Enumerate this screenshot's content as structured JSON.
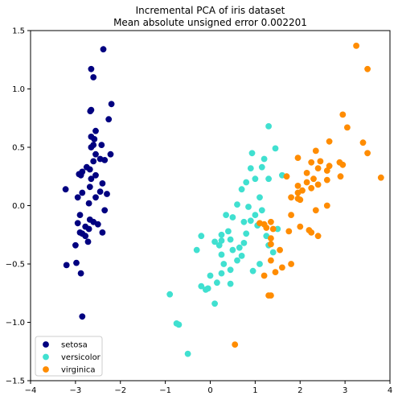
{
  "chart_data": {
    "type": "scatter",
    "title": "Incremental PCA of iris dataset",
    "subtitle": "Mean absolute unsigned error 0.002201",
    "xlim": [
      -4,
      4
    ],
    "ylim": [
      -1.5,
      1.5
    ],
    "xticks": [
      "−4",
      "−3",
      "−2",
      "−1",
      "0",
      "1",
      "2",
      "3",
      "4"
    ],
    "yticks": [
      "−1.5",
      "−1.0",
      "−0.5",
      "0.0",
      "0.5",
      "1.0",
      "1.5"
    ],
    "xtick_values": [
      -4,
      -3,
      -2,
      -1,
      0,
      1,
      2,
      3,
      4
    ],
    "ytick_values": [
      -1.5,
      -1.0,
      -0.5,
      0.0,
      0.5,
      1.0,
      1.5
    ],
    "grid": false,
    "legend_position": "lower-left",
    "series": [
      {
        "name": "setosa",
        "color": "#000080",
        "points": [
          [
            -2.38,
            1.34
          ],
          [
            -2.65,
            1.17
          ],
          [
            -2.6,
            1.1
          ],
          [
            -2.2,
            0.87
          ],
          [
            -2.65,
            0.82
          ],
          [
            -2.67,
            0.81
          ],
          [
            -2.26,
            0.74
          ],
          [
            -2.55,
            0.64
          ],
          [
            -2.65,
            0.59
          ],
          [
            -2.58,
            0.57
          ],
          [
            -2.42,
            0.52
          ],
          [
            -2.6,
            0.52
          ],
          [
            -2.65,
            0.5
          ],
          [
            -2.55,
            0.44
          ],
          [
            -2.22,
            0.44
          ],
          [
            -2.35,
            0.39
          ],
          [
            -2.45,
            0.4
          ],
          [
            -2.6,
            0.38
          ],
          [
            -2.75,
            0.33
          ],
          [
            -2.68,
            0.31
          ],
          [
            -2.85,
            0.29
          ],
          [
            -2.92,
            0.27
          ],
          [
            -2.88,
            0.26
          ],
          [
            -2.55,
            0.26
          ],
          [
            -2.65,
            0.23
          ],
          [
            -2.4,
            0.19
          ],
          [
            -2.68,
            0.16
          ],
          [
            -2.45,
            0.12
          ],
          [
            -3.22,
            0.14
          ],
          [
            -2.85,
            0.11
          ],
          [
            -2.3,
            0.1
          ],
          [
            -2.95,
            0.07
          ],
          [
            -2.55,
            0.07
          ],
          [
            -2.7,
            0.02
          ],
          [
            -2.35,
            -0.04
          ],
          [
            -2.9,
            -0.08
          ],
          [
            -2.68,
            -0.12
          ],
          [
            -2.6,
            -0.14
          ],
          [
            -2.95,
            -0.15
          ],
          [
            -2.5,
            -0.16
          ],
          [
            -2.78,
            -0.18
          ],
          [
            -2.7,
            -0.2
          ],
          [
            -2.9,
            -0.23
          ],
          [
            -2.85,
            -0.24
          ],
          [
            -2.4,
            -0.23
          ],
          [
            -2.78,
            -0.26
          ],
          [
            -2.72,
            -0.31
          ],
          [
            -3.0,
            -0.34
          ],
          [
            -3.2,
            -0.51
          ],
          [
            -2.98,
            -0.49
          ],
          [
            -2.88,
            -0.58
          ],
          [
            -2.85,
            -0.95
          ]
        ]
      },
      {
        "name": "versicolor",
        "color": "#40e0d0",
        "points": [
          [
            1.3,
            0.68
          ],
          [
            1.45,
            0.49
          ],
          [
            0.93,
            0.45
          ],
          [
            1.2,
            0.4
          ],
          [
            1.15,
            0.33
          ],
          [
            0.9,
            0.32
          ],
          [
            1.6,
            0.26
          ],
          [
            1.0,
            0.23
          ],
          [
            1.3,
            0.23
          ],
          [
            0.8,
            0.2
          ],
          [
            0.7,
            0.14
          ],
          [
            1.1,
            0.07
          ],
          [
            0.6,
            0.01
          ],
          [
            0.85,
            -0.01
          ],
          [
            1.15,
            -0.04
          ],
          [
            0.35,
            -0.08
          ],
          [
            1.0,
            -0.08
          ],
          [
            0.5,
            -0.1
          ],
          [
            0.75,
            -0.14
          ],
          [
            0.9,
            -0.13
          ],
          [
            1.05,
            -0.17
          ],
          [
            1.5,
            -0.2
          ],
          [
            0.4,
            -0.22
          ],
          [
            0.25,
            -0.25
          ],
          [
            0.8,
            -0.24
          ],
          [
            1.25,
            -0.26
          ],
          [
            -0.2,
            -0.26
          ],
          [
            0.45,
            -0.29
          ],
          [
            0.25,
            -0.3
          ],
          [
            0.1,
            -0.31
          ],
          [
            0.75,
            -0.32
          ],
          [
            0.2,
            -0.34
          ],
          [
            1.3,
            -0.34
          ],
          [
            0.65,
            -0.36
          ],
          [
            -0.3,
            -0.38
          ],
          [
            0.5,
            -0.38
          ],
          [
            1.4,
            -0.4
          ],
          [
            0.25,
            -0.42
          ],
          [
            0.7,
            -0.43
          ],
          [
            0.6,
            -0.47
          ],
          [
            0.3,
            -0.5
          ],
          [
            1.1,
            -0.5
          ],
          [
            0.45,
            -0.55
          ],
          [
            0.25,
            -0.58
          ],
          [
            0.0,
            -0.6
          ],
          [
            0.95,
            -0.56
          ],
          [
            0.15,
            -0.66
          ],
          [
            0.45,
            -0.67
          ],
          [
            -0.2,
            -0.69
          ],
          [
            -0.05,
            -0.71
          ],
          [
            -0.1,
            -0.72
          ],
          [
            -0.9,
            -0.76
          ],
          [
            0.1,
            -0.84
          ],
          [
            -0.75,
            -1.01
          ],
          [
            -0.7,
            -1.02
          ],
          [
            -0.5,
            -1.27
          ]
        ]
      },
      {
        "name": "virginica",
        "color": "#ff8c00",
        "points": [
          [
            3.25,
            1.37
          ],
          [
            3.5,
            1.17
          ],
          [
            2.95,
            0.78
          ],
          [
            3.05,
            0.67
          ],
          [
            2.65,
            0.55
          ],
          [
            3.4,
            0.54
          ],
          [
            2.35,
            0.47
          ],
          [
            3.5,
            0.45
          ],
          [
            1.95,
            0.41
          ],
          [
            2.25,
            0.37
          ],
          [
            2.45,
            0.38
          ],
          [
            2.88,
            0.37
          ],
          [
            2.95,
            0.35
          ],
          [
            2.65,
            0.34
          ],
          [
            2.4,
            0.32
          ],
          [
            2.6,
            0.3
          ],
          [
            2.15,
            0.28
          ],
          [
            1.7,
            0.25
          ],
          [
            2.3,
            0.23
          ],
          [
            2.9,
            0.25
          ],
          [
            3.8,
            0.24
          ],
          [
            2.6,
            0.22
          ],
          [
            2.15,
            0.2
          ],
          [
            2.4,
            0.18
          ],
          [
            1.95,
            0.17
          ],
          [
            2.25,
            0.15
          ],
          [
            2.05,
            0.13
          ],
          [
            1.95,
            0.11
          ],
          [
            1.8,
            0.07
          ],
          [
            1.95,
            0.06
          ],
          [
            2.0,
            0.05
          ],
          [
            2.35,
            -0.04
          ],
          [
            2.6,
            0.0
          ],
          [
            1.8,
            -0.08
          ],
          [
            1.35,
            -0.14
          ],
          [
            1.1,
            -0.15
          ],
          [
            1.2,
            -0.16
          ],
          [
            1.25,
            -0.19
          ],
          [
            1.4,
            -0.2
          ],
          [
            2.0,
            -0.18
          ],
          [
            2.2,
            -0.21
          ],
          [
            1.75,
            -0.22
          ],
          [
            2.25,
            -0.23
          ],
          [
            2.4,
            -0.26
          ],
          [
            1.35,
            -0.28
          ],
          [
            1.35,
            -0.33
          ],
          [
            1.55,
            -0.38
          ],
          [
            1.35,
            -0.47
          ],
          [
            1.8,
            -0.5
          ],
          [
            1.6,
            -0.53
          ],
          [
            1.45,
            -0.57
          ],
          [
            1.2,
            -0.6
          ],
          [
            1.3,
            -0.77
          ],
          [
            1.35,
            -0.77
          ],
          [
            0.55,
            -1.19
          ]
        ]
      }
    ]
  }
}
